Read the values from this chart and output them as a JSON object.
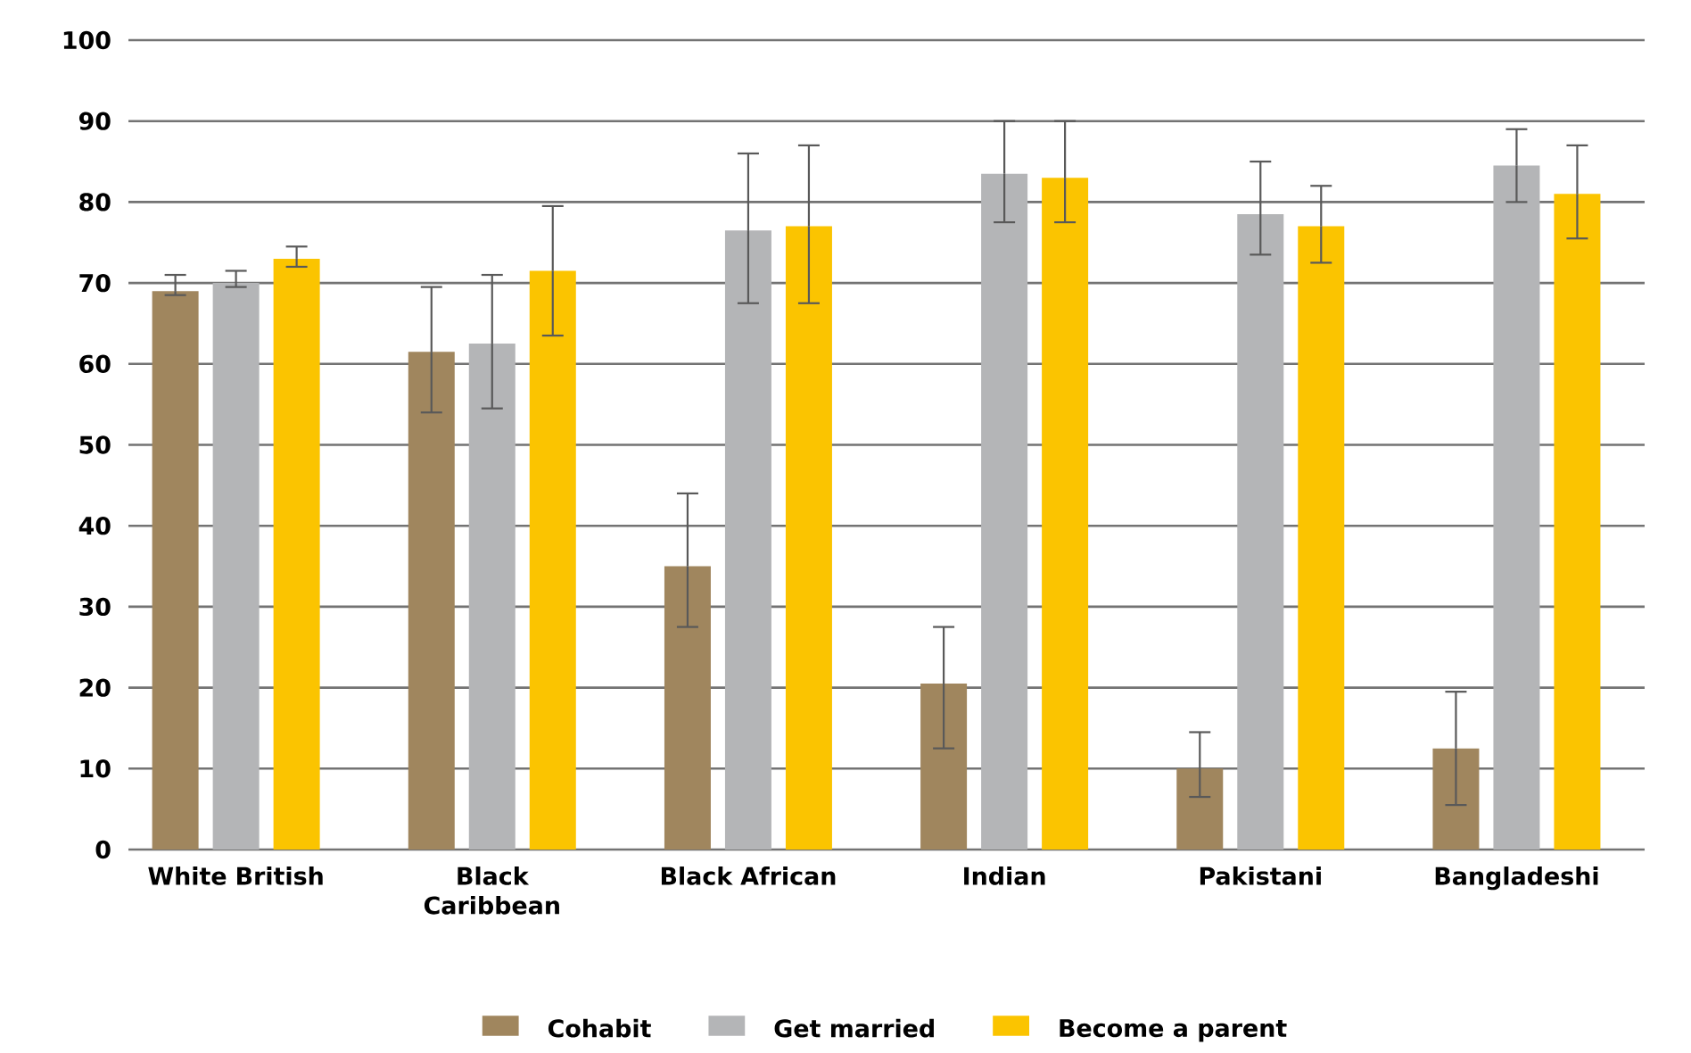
{
  "chart_data": {
    "type": "bar",
    "categories": [
      "White British",
      "Black Caribbean",
      "Black African",
      "Indian",
      "Pakistani",
      "Bangladeshi"
    ],
    "series": [
      {
        "name": "Cohabit",
        "color": "#a0865e",
        "values": [
          69.0,
          61.5,
          35.0,
          20.5,
          10.0,
          12.5
        ],
        "errors": [
          [
            68.5,
            71.0
          ],
          [
            54.0,
            69.5
          ],
          [
            27.5,
            44.0
          ],
          [
            12.5,
            27.5
          ],
          [
            6.5,
            14.5
          ],
          [
            5.5,
            19.5
          ]
        ]
      },
      {
        "name": "Get married",
        "color": "#b4b5b7",
        "values": [
          70.0,
          62.5,
          76.5,
          83.5,
          78.5,
          84.5
        ],
        "errors": [
          [
            69.5,
            71.5
          ],
          [
            54.5,
            71.0
          ],
          [
            67.5,
            86.0
          ],
          [
            77.5,
            90.0
          ],
          [
            73.5,
            85.0
          ],
          [
            80.0,
            89.0
          ]
        ]
      },
      {
        "name": "Become a parent",
        "color": "#fbc400",
        "values": [
          73.0,
          71.5,
          77.0,
          83.0,
          77.0,
          81.0
        ],
        "errors": [
          [
            72.0,
            74.5
          ],
          [
            63.5,
            79.5
          ],
          [
            67.5,
            87.0
          ],
          [
            77.5,
            90.0
          ],
          [
            72.5,
            82.0
          ],
          [
            75.5,
            87.0
          ]
        ]
      }
    ],
    "ylim": [
      0,
      100
    ],
    "yticks": [
      0,
      10,
      20,
      30,
      40,
      50,
      60,
      70,
      80,
      90,
      100
    ],
    "grid": "y",
    "legend": "bottom"
  }
}
